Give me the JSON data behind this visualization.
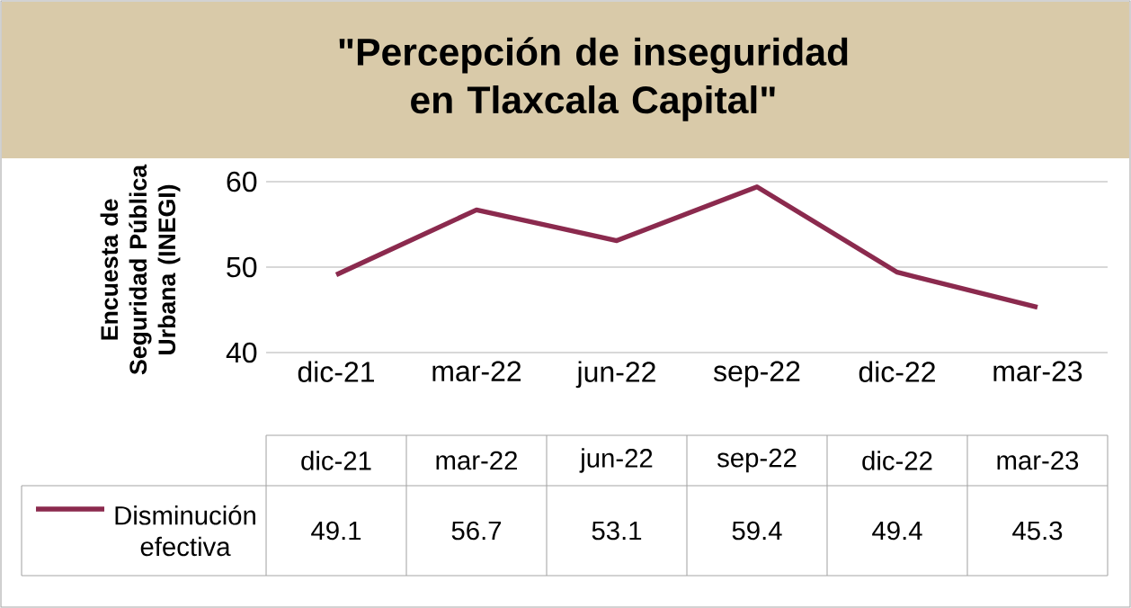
{
  "chart_data": {
    "type": "line",
    "title": "\"Percepción de inseguridad en Tlaxcala Capital\"",
    "ylabel": "Encuesta de Seguridad Pública Urbana (INEGI)",
    "categories": [
      "dic-21",
      "mar-22",
      "jun-22",
      "sep-22",
      "dic-22",
      "mar-23"
    ],
    "series": [
      {
        "name": "Disminución efectiva",
        "color": "#8b2a4e",
        "values": [
          49.1,
          56.7,
          53.1,
          59.4,
          49.4,
          45.3
        ]
      }
    ],
    "ylim": [
      40,
      60
    ],
    "yticks": [
      40,
      50,
      60
    ],
    "grid": "y",
    "legend": "bottom",
    "data_labels": true,
    "line_style": "solid",
    "marker": "none"
  }
}
